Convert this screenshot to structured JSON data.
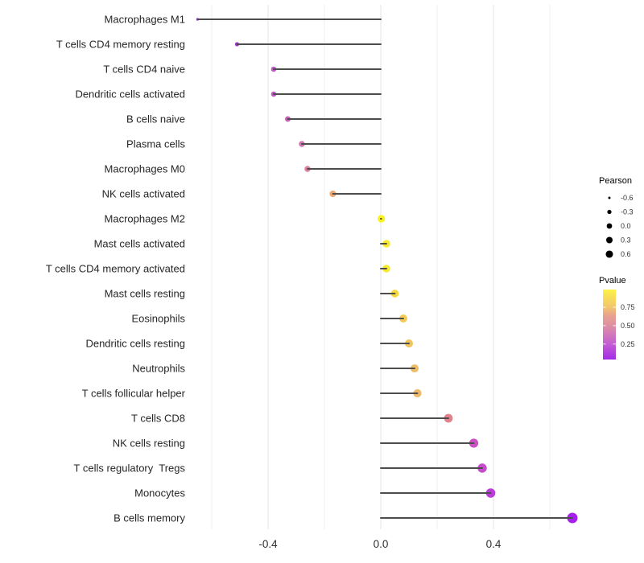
{
  "figure": {
    "background": "#ffffff",
    "description": "Horizontal lollipop chart of Pearson correlation per immune cell type, point size = Pearson, point color = P value"
  },
  "chart_data": {
    "type": "scatter",
    "style": "lollipop",
    "orientation": "horizontal",
    "title": "",
    "xlabel": "",
    "ylabel": "",
    "xlim": [
      -0.68,
      0.72
    ],
    "grid": "vertical-only",
    "categories": [
      "Macrophages M1",
      "T cells CD4 memory resting",
      "T cells CD4 naive",
      "Dendritic cells activated",
      "B cells naive",
      "Plasma cells",
      "Macrophages M0",
      "NK cells activated",
      "Macrophages M2",
      "Mast cells activated",
      "T cells CD4 memory activated",
      "Mast cells resting",
      "Eosinophils",
      "Dendritic cells resting",
      "Neutrophils",
      "T cells follicular helper",
      "T cells CD8",
      "NK cells resting",
      "T cells regulatory  Tregs",
      "Monocytes",
      "B cells memory"
    ],
    "series": [
      {
        "name": "Pearson",
        "values": [
          -0.65,
          -0.51,
          -0.38,
          -0.38,
          -0.33,
          -0.28,
          -0.26,
          -0.17,
          0.002,
          0.02,
          0.02,
          0.05,
          0.08,
          0.1,
          0.12,
          0.13,
          0.24,
          0.33,
          0.36,
          0.39,
          0.68
        ]
      }
    ],
    "pvalues_estimated": [
      0.06,
      0.1,
      0.21,
      0.21,
      0.26,
      0.35,
      0.43,
      0.62,
      0.97,
      0.91,
      0.91,
      0.83,
      0.77,
      0.73,
      0.68,
      0.67,
      0.48,
      0.23,
      0.2,
      0.15,
      0.05
    ],
    "point_colors": [
      "#9B30D3",
      "#A637D1",
      "#C158C5",
      "#C158C5",
      "#C762B7",
      "#D173AE",
      "#D9819B",
      "#ECAA76",
      "#FAF223",
      "#F8E92C",
      "#F8E92C",
      "#F4D83D",
      "#F2CB52",
      "#F0C45C",
      "#EFBC68",
      "#EEB96B",
      "#E0818B",
      "#CB51C3",
      "#C64BCD",
      "#BA3DD9",
      "#A521EB"
    ],
    "stem_color": "#4d4d4d",
    "xticks": {
      "labels": [
        "-0.4",
        "0.0",
        "0.4"
      ],
      "values": [
        -0.4,
        0.0,
        0.4
      ]
    },
    "x_gridlines": [
      -0.6,
      -0.4,
      -0.2,
      0.0,
      0.2,
      0.4,
      0.6
    ],
    "x_gridlines_major": [
      -0.4,
      0.0,
      0.4
    ],
    "legend_size": {
      "title": "Pearson",
      "labels": [
        "-0.6",
        "-0.3",
        "0.0",
        "0.3",
        "0.6"
      ],
      "values": [
        -0.6,
        -0.3,
        0.0,
        0.3,
        0.6
      ],
      "dot_color": "#000000"
    },
    "legend_color": {
      "title": "Pvalue",
      "tick_labels": [
        "0.75",
        "0.50",
        "0.25"
      ],
      "tick_values": [
        0.75,
        0.5,
        0.25
      ],
      "range": [
        0.04,
        0.99
      ],
      "gradient_stops": [
        {
          "offset": 0.0,
          "color": "#FCF245"
        },
        {
          "offset": 0.25,
          "color": "#F2C56E"
        },
        {
          "offset": 0.38,
          "color": "#E8A090"
        },
        {
          "offset": 0.52,
          "color": "#DD8FA4"
        },
        {
          "offset": 0.78,
          "color": "#C45DD4"
        },
        {
          "offset": 1.0,
          "color": "#A32BE5"
        }
      ]
    }
  }
}
